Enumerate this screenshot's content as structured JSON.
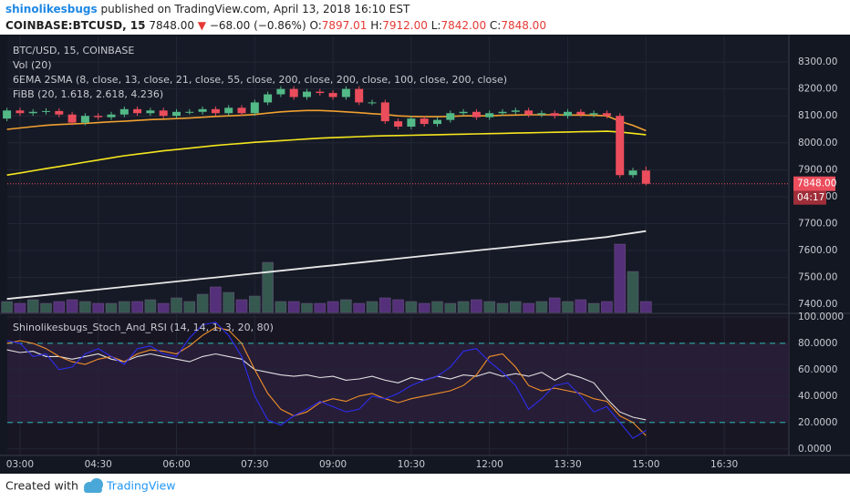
{
  "header": {
    "author": "shinolikesbugs",
    "published": "published on TradingView.com, April 13, 2018 16:10 EST",
    "symbol": "COINBASE:BTCUSD, 15",
    "last": "7848.00",
    "change": "−68.00 (−0.86%)",
    "ohlc": [
      {
        "label": "O:",
        "value": "7897.01"
      },
      {
        "label": "H:",
        "value": "7912.00"
      },
      {
        "label": "L:",
        "value": "7842.00"
      },
      {
        "label": "C:",
        "value": "7848.00"
      }
    ]
  },
  "footer": {
    "created": "Created with",
    "brand": "TradingView"
  },
  "chart_data": [
    {
      "type": "candlestick",
      "title": "BTC/USD, 15, COINBASE",
      "annotations": [
        "Vol (20)",
        "6EMA 2SMA (8, close, 13, close, 21, close, 55, close, 200, close, 200, close, 100, close, 200, close)",
        "FiBB (20, 1.618, 2.618, 4.236)"
      ],
      "categories": [
        null,
        "03:00",
        null,
        null,
        null,
        null,
        null,
        "04:30",
        null,
        null,
        null,
        null,
        null,
        "06:00",
        null,
        null,
        null,
        null,
        null,
        "07:30",
        null,
        null,
        null,
        null,
        null,
        "09:00",
        null,
        null,
        null,
        null,
        null,
        "10:30",
        null,
        null,
        null,
        null,
        null,
        "12:00",
        null,
        null,
        null,
        null,
        null,
        "13:30",
        null,
        null,
        null,
        null,
        null,
        "15:00",
        null,
        null,
        null,
        null,
        null,
        "16:30",
        null,
        null,
        null,
        null
      ],
      "open": [
        8090,
        8120,
        8110,
        8115,
        8118,
        8105,
        8075,
        8100,
        8095,
        8105,
        8125,
        8110,
        8120,
        8100,
        8115,
        8115,
        8125,
        8110,
        8130,
        8110,
        8150,
        8180,
        8200,
        8170,
        8190,
        8185,
        8170,
        8200,
        8150,
        8150,
        8080,
        8060,
        8090,
        8070,
        8085,
        8110,
        8115,
        8095,
        8110,
        8115,
        8120,
        8105,
        8110,
        8100,
        8115,
        8105,
        8110,
        8100,
        7880,
        7897.01,
        null,
        null,
        null,
        null,
        null,
        null,
        null,
        null,
        null,
        null
      ],
      "high": [
        8130,
        8130,
        8125,
        8128,
        8128,
        8115,
        8110,
        8110,
        8115,
        8135,
        8135,
        8130,
        8130,
        8125,
        8125,
        8135,
        8135,
        8140,
        8140,
        8160,
        8190,
        8210,
        8210,
        8200,
        8200,
        8195,
        8210,
        8210,
        8160,
        8160,
        8090,
        8100,
        8100,
        8095,
        8120,
        8125,
        8125,
        8120,
        8125,
        8130,
        8130,
        8120,
        8120,
        8125,
        8125,
        8120,
        8120,
        8110,
        7907,
        7912,
        null,
        null,
        null,
        null,
        null,
        null,
        null,
        null,
        null,
        null
      ],
      "low": [
        8080,
        8100,
        8100,
        8105,
        8095,
        8065,
        8065,
        8085,
        8085,
        8095,
        8100,
        8100,
        8090,
        8090,
        8105,
        8105,
        8100,
        8100,
        8100,
        8100,
        8140,
        8170,
        8160,
        8160,
        8175,
        8160,
        8160,
        8140,
        8140,
        8070,
        8050,
        8050,
        8060,
        8060,
        8075,
        8100,
        8085,
        8085,
        8100,
        8105,
        8095,
        8095,
        8090,
        8090,
        8095,
        8095,
        8090,
        7870,
        7870,
        7842,
        null,
        null,
        null,
        null,
        null,
        null,
        null,
        null,
        null,
        null
      ],
      "close": [
        8120,
        8110,
        8115,
        8118,
        8105,
        8075,
        8100,
        8095,
        8105,
        8125,
        8110,
        8120,
        8100,
        8115,
        8115,
        8125,
        8110,
        8130,
        8110,
        8150,
        8180,
        8200,
        8170,
        8190,
        8185,
        8170,
        8200,
        8150,
        8150,
        8080,
        8060,
        8090,
        8070,
        8085,
        8110,
        8115,
        8095,
        8110,
        8115,
        8120,
        8105,
        8110,
        8100,
        8115,
        8105,
        8110,
        8100,
        7880,
        7897,
        7848,
        null,
        null,
        null,
        null,
        null,
        null,
        null,
        null,
        null,
        null
      ],
      "up_color": "#53b987",
      "down_color": "#eb4d5c",
      "volume": [
        12,
        10,
        14,
        10,
        12,
        14,
        12,
        10,
        10,
        12,
        12,
        14,
        10,
        16,
        12,
        20,
        28,
        22,
        14,
        18,
        55,
        12,
        12,
        10,
        10,
        12,
        14,
        10,
        12,
        16,
        14,
        12,
        10,
        12,
        10,
        12,
        14,
        12,
        10,
        12,
        10,
        12,
        16,
        12,
        14,
        10,
        12,
        75,
        45,
        12,
        null,
        null,
        null,
        null,
        null,
        null,
        null,
        null,
        null,
        null
      ],
      "vlim": [
        0,
        303
      ],
      "volume_up_color": "#35594f",
      "volume_down_color": "#55307a",
      "series": [
        {
          "color": "#e8e8e8",
          "values": [
            7420,
            7425,
            7430,
            7435,
            7440,
            7445,
            7450,
            7455,
            7460,
            7465,
            7470,
            7475,
            7480,
            7485,
            7490,
            7495,
            7500,
            7505,
            7510,
            7515,
            7520,
            7525,
            7530,
            7535,
            7540,
            7545,
            7550,
            7555,
            7560,
            7565,
            7570,
            7575,
            7580,
            7585,
            7590,
            7595,
            7600,
            7605,
            7610,
            7615,
            7620,
            7625,
            7630,
            7635,
            7640,
            7645,
            7650,
            7658,
            7665,
            7672,
            null,
            null,
            null,
            null,
            null,
            null,
            null,
            null,
            null,
            null
          ]
        },
        {
          "color": "#f5e61d",
          "values": [
            7880,
            7888,
            7896,
            7904,
            7912,
            7920,
            7928,
            7936,
            7944,
            7952,
            7958,
            7964,
            7970,
            7975,
            7980,
            7985,
            7990,
            7994,
            7998,
            8002,
            8005,
            8008,
            8011,
            8014,
            8017,
            8019,
            8021,
            8023,
            8025,
            8026,
            8027,
            8028,
            8029,
            8030,
            8031,
            8032,
            8033,
            8034,
            8035,
            8036,
            8037,
            8038,
            8039,
            8040,
            8041,
            8042,
            8043,
            8040,
            8035,
            8030,
            null,
            null,
            null,
            null,
            null,
            null,
            null,
            null,
            null,
            null
          ]
        },
        {
          "color": "#f0a030",
          "values": [
            8050,
            8055,
            8060,
            8065,
            8068,
            8070,
            8072,
            8075,
            8078,
            8080,
            8083,
            8086,
            8088,
            8090,
            8092,
            8095,
            8098,
            8100,
            8102,
            8105,
            8110,
            8115,
            8118,
            8120,
            8120,
            8118,
            8115,
            8112,
            8108,
            8105,
            8100,
            8098,
            8097,
            8097,
            8098,
            8100,
            8100,
            8100,
            8102,
            8103,
            8104,
            8104,
            8104,
            8103,
            8103,
            8102,
            8100,
            8080,
            8065,
            8045,
            null,
            null,
            null,
            null,
            null,
            null,
            null,
            null,
            null,
            null
          ]
        }
      ],
      "ylim": [
        7370,
        8395
      ],
      "yticks": [
        {
          "value": 7400,
          "label": "7400.00"
        },
        {
          "value": 7500,
          "label": "7500.00"
        },
        {
          "value": 7600,
          "label": "7600.00"
        },
        {
          "value": 7700,
          "label": "7700.00"
        },
        {
          "value": 7800,
          "label": "7800.00"
        },
        {
          "value": 7900,
          "label": "7900.00"
        },
        {
          "value": 8000,
          "label": "8000.00"
        },
        {
          "value": 8100,
          "label": "8100.00"
        },
        {
          "value": 8200,
          "label": "8200.00"
        },
        {
          "value": 8300,
          "label": "8300.00"
        }
      ],
      "price_label": {
        "value": 7848,
        "label": "7848.00"
      },
      "countdown": "04:17",
      "grid": true
    },
    {
      "type": "line",
      "title": "Shinolikesbugs_Stoch_And_RSI (14, 14, 1, 3, 20, 80)",
      "series": [
        {
          "color": "#e0e0e0",
          "values": [
            75,
            73,
            74,
            70,
            70,
            68,
            70,
            72,
            68,
            66,
            70,
            72,
            70,
            68,
            66,
            70,
            72,
            70,
            68,
            60,
            58,
            56,
            55,
            56,
            54,
            55,
            52,
            53,
            55,
            52,
            50,
            54,
            52,
            55,
            53,
            56,
            55,
            58,
            55,
            57,
            55,
            58,
            52,
            57,
            54,
            50,
            38,
            28,
            24,
            22,
            null,
            null,
            null,
            null,
            null,
            null,
            null,
            null,
            null,
            null
          ]
        },
        {
          "color": "#f0902a",
          "values": [
            80,
            82,
            80,
            76,
            70,
            66,
            64,
            68,
            70,
            66,
            72,
            75,
            74,
            72,
            78,
            86,
            92,
            90,
            80,
            60,
            42,
            30,
            25,
            28,
            35,
            38,
            36,
            40,
            42,
            38,
            35,
            38,
            40,
            42,
            44,
            48,
            56,
            70,
            72,
            62,
            48,
            44,
            46,
            44,
            42,
            38,
            36,
            25,
            20,
            10,
            null,
            null,
            null,
            null,
            null,
            null,
            null,
            null,
            null,
            null
          ]
        },
        {
          "color": "#2d2df0",
          "values": [
            82,
            80,
            70,
            72,
            60,
            62,
            72,
            76,
            70,
            64,
            76,
            78,
            72,
            70,
            84,
            94,
            96,
            86,
            70,
            40,
            22,
            18,
            25,
            30,
            36,
            32,
            28,
            30,
            40,
            38,
            42,
            48,
            52,
            55,
            62,
            74,
            76,
            66,
            58,
            48,
            30,
            38,
            48,
            50,
            40,
            28,
            32,
            20,
            8,
            14,
            null,
            null,
            null,
            null,
            null,
            null,
            null,
            null,
            null,
            null
          ]
        }
      ],
      "bands": [
        20,
        80
      ],
      "band_color": "#2a9d9a",
      "ylim": [
        -5,
        102
      ],
      "yticks": [
        {
          "value": 0,
          "label": "0.0000"
        },
        {
          "value": 20,
          "label": "20.0000"
        },
        {
          "value": 40,
          "label": "40.0000"
        },
        {
          "value": 60,
          "label": "60.0000"
        },
        {
          "value": 80,
          "label": "80.0000"
        },
        {
          "value": 100,
          "label": "100.0000"
        }
      ],
      "grid": true
    }
  ]
}
